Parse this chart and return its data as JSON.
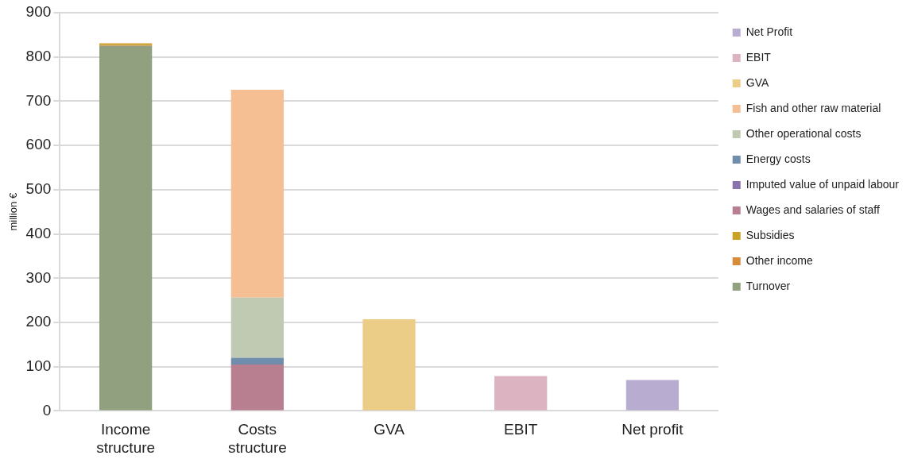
{
  "chart_data": {
    "type": "bar",
    "stacked": true,
    "ylabel": "million €",
    "categories": [
      "Income structure",
      "Costs structure",
      "GVA",
      "EBIT",
      "Net profit"
    ],
    "ylim": [
      0,
      900
    ],
    "yticks": [
      0,
      100,
      200,
      300,
      400,
      500,
      600,
      700,
      800,
      900
    ],
    "grid": "y",
    "legend": "right",
    "series": [
      {
        "name": "Turnover",
        "color": "#91a07e",
        "values": [
          825,
          null,
          null,
          null,
          null
        ]
      },
      {
        "name": "Other income",
        "color": "#d78c3c",
        "values": [
          2,
          null,
          null,
          null,
          null
        ]
      },
      {
        "name": "Subsidies",
        "color": "#c9a227",
        "values": [
          4,
          null,
          null,
          null,
          null
        ]
      },
      {
        "name": "Wages and salaries of staff",
        "color": "#b77f90",
        "values": [
          null,
          105,
          null,
          null,
          null
        ]
      },
      {
        "name": "Imputed value of unpaid labour",
        "color": "#8a73aa",
        "values": [
          null,
          0,
          null,
          null,
          null
        ]
      },
      {
        "name": "Energy costs",
        "color": "#718dac",
        "values": [
          null,
          15,
          null,
          null,
          null
        ]
      },
      {
        "name": "Other operational costs",
        "color": "#c0cab3",
        "values": [
          null,
          136,
          null,
          null,
          null
        ]
      },
      {
        "name": "Fish and other raw material",
        "color": "#f5be93",
        "values": [
          null,
          470,
          null,
          null,
          null
        ]
      },
      {
        "name": "GVA",
        "color": "#ebcd88",
        "values": [
          null,
          null,
          207,
          null,
          null
        ]
      },
      {
        "name": "EBIT",
        "color": "#dbb3c1",
        "values": [
          null,
          null,
          null,
          79,
          null
        ]
      },
      {
        "name": "Net Profit",
        "color": "#b8acd0",
        "values": [
          null,
          null,
          null,
          null,
          70
        ]
      }
    ]
  }
}
